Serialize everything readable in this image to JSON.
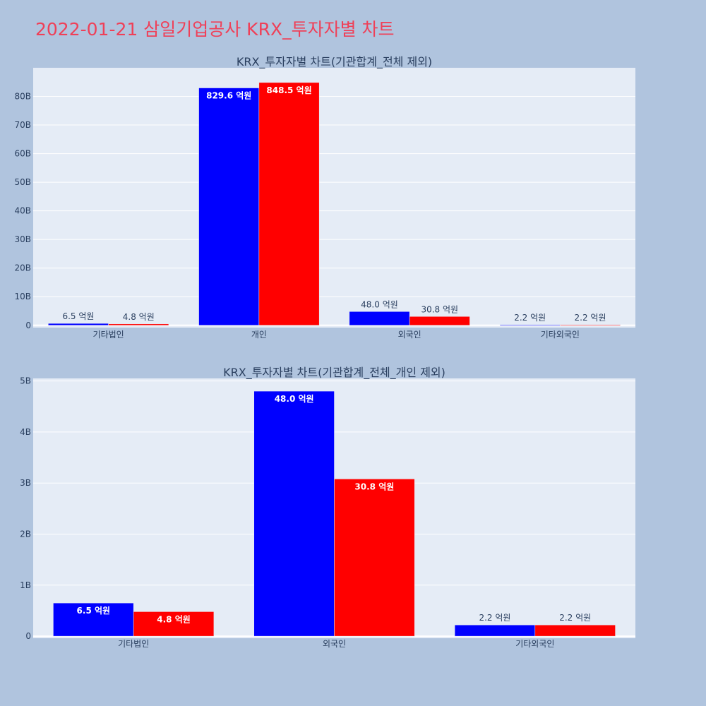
{
  "page_title": "2022-01-21 삼일기업공사 KRX_투자자별 차트",
  "colors": {
    "buy": "#0000ff",
    "sell": "#ff0000",
    "plot_bg": "#e5ecf6",
    "paper_bg": "#b0c4de",
    "title": "#ef4058"
  },
  "chart_data": [
    {
      "type": "bar",
      "title": "KRX_투자자별 차트(기관합계_전체 제외)",
      "categories": [
        "기타법인",
        "개인",
        "외국인",
        "기타외국인"
      ],
      "series": [
        {
          "values": [
            650000000,
            82960000000,
            4800000000,
            220000000
          ],
          "labels": [
            "6.5 억원",
            "829.6 억원",
            "48.0 억원",
            "2.2 억원"
          ]
        },
        {
          "values": [
            480000000,
            84850000000,
            3080000000,
            220000000
          ],
          "labels": [
            "4.8 억원",
            "848.5 억원",
            "30.8 억원",
            "2.2 억원"
          ]
        }
      ],
      "ylim": [
        -800000000,
        90000000000
      ],
      "yticks": [
        0,
        10000000000,
        20000000000,
        30000000000,
        40000000000,
        50000000000,
        60000000000,
        70000000000,
        80000000000
      ],
      "ytick_labels": [
        "0",
        "10B",
        "20B",
        "30B",
        "40B",
        "50B",
        "60B",
        "70B",
        "80B"
      ],
      "grid": true
    },
    {
      "type": "bar",
      "title": "KRX_투자자별 차트(기관합계_전체_개인 제외)",
      "categories": [
        "기타법인",
        "외국인",
        "기타외국인"
      ],
      "series": [
        {
          "values": [
            650000000,
            4800000000,
            220000000
          ],
          "labels": [
            "6.5 억원",
            "48.0 억원",
            "2.2 억원"
          ]
        },
        {
          "values": [
            480000000,
            3080000000,
            220000000
          ],
          "labels": [
            "4.8 억원",
            "30.8 억원",
            "2.2 억원"
          ]
        }
      ],
      "ylim": [
        -40000000,
        5050000000
      ],
      "yticks": [
        0,
        1000000000,
        2000000000,
        3000000000,
        4000000000,
        5000000000
      ],
      "ytick_labels": [
        "0",
        "1B",
        "2B",
        "3B",
        "4B",
        "5B"
      ],
      "grid": true
    }
  ]
}
